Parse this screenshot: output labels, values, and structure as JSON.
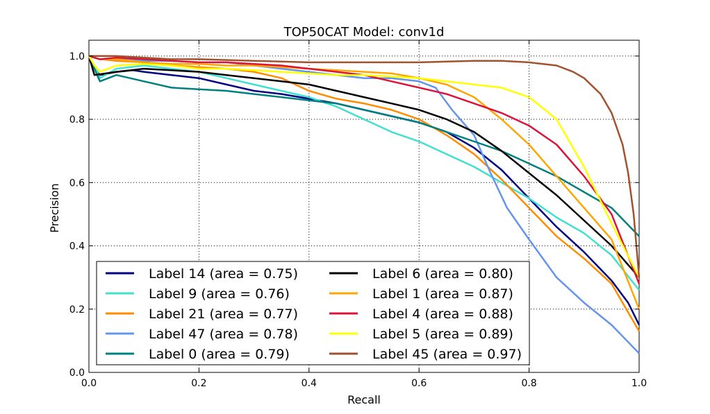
{
  "chart_data": {
    "type": "line",
    "title": "TOP50CAT Model: conv1d",
    "xlabel": "Recall",
    "ylabel": "Precision",
    "xlim": [
      0.0,
      1.0
    ],
    "ylim": [
      0.0,
      1.05
    ],
    "xticks": [
      0.0,
      0.2,
      0.4,
      0.6,
      0.8,
      1.0
    ],
    "yticks": [
      0.0,
      0.2,
      0.4,
      0.6,
      0.8,
      1.0
    ],
    "xtick_labels": [
      "0.0",
      "0.2",
      "0.4",
      "0.6",
      "0.8",
      "1.0"
    ],
    "ytick_labels": [
      "0.0",
      "0.2",
      "0.4",
      "0.6",
      "0.8",
      "1.0"
    ],
    "grid": true,
    "legend_position": "lower-left",
    "legend_columns": 2,
    "series": [
      {
        "name": "Label 14 (area = 0.75)",
        "color": "#000080",
        "x": [
          0,
          0.01,
          0.02,
          0.05,
          0.08,
          0.1,
          0.15,
          0.2,
          0.25,
          0.3,
          0.35,
          0.4,
          0.45,
          0.5,
          0.55,
          0.6,
          0.65,
          0.7,
          0.75,
          0.8,
          0.85,
          0.9,
          0.95,
          0.98,
          1.0
        ],
        "y": [
          1.0,
          0.96,
          0.94,
          0.95,
          0.955,
          0.95,
          0.94,
          0.93,
          0.91,
          0.89,
          0.88,
          0.865,
          0.85,
          0.83,
          0.81,
          0.79,
          0.76,
          0.71,
          0.64,
          0.55,
          0.46,
          0.38,
          0.29,
          0.22,
          0.15
        ]
      },
      {
        "name": "Label 9 (area = 0.76)",
        "color": "#40E0D0",
        "x": [
          0,
          0.01,
          0.02,
          0.05,
          0.1,
          0.15,
          0.2,
          0.25,
          0.3,
          0.35,
          0.4,
          0.45,
          0.5,
          0.55,
          0.6,
          0.65,
          0.7,
          0.75,
          0.8,
          0.85,
          0.9,
          0.95,
          1.0
        ],
        "y": [
          1.0,
          0.97,
          0.93,
          0.96,
          0.97,
          0.96,
          0.95,
          0.93,
          0.91,
          0.89,
          0.87,
          0.84,
          0.8,
          0.76,
          0.73,
          0.69,
          0.65,
          0.6,
          0.55,
          0.49,
          0.44,
          0.37,
          0.26
        ]
      },
      {
        "name": "Label 21 (area = 0.77)",
        "color": "#FF8C00",
        "x": [
          0,
          0.02,
          0.05,
          0.1,
          0.15,
          0.2,
          0.25,
          0.3,
          0.35,
          0.4,
          0.45,
          0.5,
          0.55,
          0.6,
          0.65,
          0.7,
          0.75,
          0.8,
          0.85,
          0.9,
          0.95,
          1.0
        ],
        "y": [
          1.0,
          0.99,
          0.985,
          0.98,
          0.97,
          0.965,
          0.96,
          0.95,
          0.93,
          0.89,
          0.865,
          0.85,
          0.83,
          0.8,
          0.75,
          0.69,
          0.61,
          0.52,
          0.43,
          0.36,
          0.28,
          0.13
        ]
      },
      {
        "name": "Label 47 (area = 0.78)",
        "color": "#6495ED",
        "x": [
          0,
          0.02,
          0.05,
          0.1,
          0.15,
          0.2,
          0.25,
          0.3,
          0.35,
          0.4,
          0.45,
          0.5,
          0.55,
          0.6,
          0.63,
          0.66,
          0.7,
          0.73,
          0.76,
          0.8,
          0.85,
          0.9,
          0.95,
          1.0
        ],
        "y": [
          1.0,
          0.99,
          0.99,
          0.985,
          0.985,
          0.98,
          0.98,
          0.97,
          0.96,
          0.95,
          0.94,
          0.93,
          0.93,
          0.92,
          0.9,
          0.83,
          0.75,
          0.63,
          0.52,
          0.42,
          0.3,
          0.22,
          0.15,
          0.06
        ]
      },
      {
        "name": "Label 0 (area = 0.79)",
        "color": "#008080",
        "x": [
          0,
          0.01,
          0.02,
          0.05,
          0.1,
          0.15,
          0.2,
          0.25,
          0.3,
          0.35,
          0.4,
          0.45,
          0.5,
          0.55,
          0.6,
          0.65,
          0.7,
          0.75,
          0.8,
          0.85,
          0.9,
          0.95,
          1.0
        ],
        "y": [
          1.0,
          0.96,
          0.92,
          0.94,
          0.92,
          0.9,
          0.895,
          0.89,
          0.88,
          0.87,
          0.86,
          0.85,
          0.83,
          0.81,
          0.79,
          0.76,
          0.73,
          0.7,
          0.66,
          0.62,
          0.57,
          0.52,
          0.43
        ]
      },
      {
        "name": "Label 6 (area = 0.80)",
        "color": "#000000",
        "x": [
          0,
          0.01,
          0.05,
          0.1,
          0.15,
          0.2,
          0.25,
          0.3,
          0.35,
          0.4,
          0.45,
          0.5,
          0.55,
          0.6,
          0.65,
          0.7,
          0.75,
          0.8,
          0.85,
          0.9,
          0.95,
          1.0
        ],
        "y": [
          1.0,
          0.94,
          0.95,
          0.96,
          0.955,
          0.95,
          0.94,
          0.93,
          0.92,
          0.91,
          0.89,
          0.87,
          0.85,
          0.83,
          0.8,
          0.76,
          0.7,
          0.63,
          0.56,
          0.48,
          0.4,
          0.3
        ]
      },
      {
        "name": "Label 1 (area = 0.87)",
        "color": "#FFA500",
        "x": [
          0,
          0.02,
          0.05,
          0.1,
          0.15,
          0.2,
          0.25,
          0.3,
          0.35,
          0.4,
          0.45,
          0.5,
          0.55,
          0.6,
          0.65,
          0.7,
          0.75,
          0.8,
          0.85,
          0.9,
          0.95,
          1.0
        ],
        "y": [
          1.0,
          0.99,
          0.99,
          0.98,
          0.975,
          0.975,
          0.97,
          0.97,
          0.965,
          0.96,
          0.955,
          0.95,
          0.945,
          0.93,
          0.91,
          0.87,
          0.8,
          0.72,
          0.62,
          0.52,
          0.42,
          0.2
        ]
      },
      {
        "name": "Label 4 (area = 0.88)",
        "color": "#DC143C",
        "x": [
          0,
          0.02,
          0.05,
          0.1,
          0.15,
          0.2,
          0.25,
          0.3,
          0.35,
          0.4,
          0.45,
          0.5,
          0.55,
          0.6,
          0.65,
          0.7,
          0.75,
          0.8,
          0.85,
          0.9,
          0.95,
          1.0
        ],
        "y": [
          1.0,
          0.99,
          0.995,
          0.99,
          0.985,
          0.98,
          0.98,
          0.975,
          0.97,
          0.96,
          0.95,
          0.94,
          0.92,
          0.9,
          0.88,
          0.85,
          0.82,
          0.78,
          0.72,
          0.62,
          0.5,
          0.28
        ]
      },
      {
        "name": "Label 5 (area = 0.89)",
        "color": "#FFFF00",
        "x": [
          0,
          0.01,
          0.02,
          0.05,
          0.1,
          0.15,
          0.2,
          0.25,
          0.3,
          0.35,
          0.4,
          0.45,
          0.5,
          0.55,
          0.6,
          0.65,
          0.7,
          0.75,
          0.8,
          0.85,
          0.9,
          0.95,
          1.0
        ],
        "y": [
          1.0,
          0.97,
          0.95,
          0.97,
          0.975,
          0.97,
          0.96,
          0.96,
          0.955,
          0.95,
          0.945,
          0.94,
          0.94,
          0.935,
          0.93,
          0.92,
          0.91,
          0.9,
          0.87,
          0.8,
          0.65,
          0.47,
          0.3
        ]
      },
      {
        "name": "Label 45 (area = 0.97)",
        "color": "#A0522D",
        "x": [
          0,
          0.05,
          0.1,
          0.15,
          0.2,
          0.3,
          0.4,
          0.5,
          0.6,
          0.7,
          0.75,
          0.8,
          0.85,
          0.88,
          0.9,
          0.93,
          0.95,
          0.97,
          0.98,
          0.99,
          1.0
        ],
        "y": [
          1.0,
          1.0,
          0.995,
          0.99,
          0.99,
          0.985,
          0.98,
          0.98,
          0.98,
          0.985,
          0.985,
          0.98,
          0.97,
          0.95,
          0.93,
          0.88,
          0.82,
          0.72,
          0.63,
          0.5,
          0.3
        ]
      }
    ]
  }
}
